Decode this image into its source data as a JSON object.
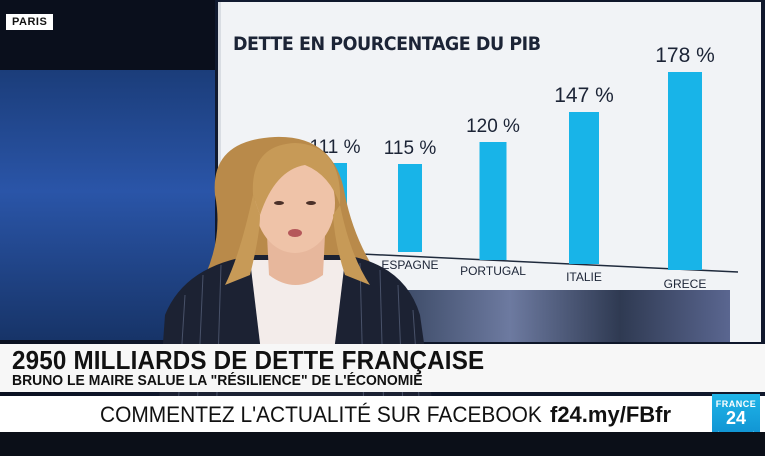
{
  "location_tag": "PARIS",
  "chart_data": {
    "type": "bar",
    "title": "DETTE EN POURCENTAGE DU PIB",
    "categories": [
      "",
      "ESPAGNE",
      "PORTUGAL",
      "ITALIE",
      "GRECE"
    ],
    "values": [
      111,
      115,
      120,
      147,
      178
    ],
    "value_labels": [
      "111 %",
      "115 %",
      "120 %",
      "147 %",
      "178 %"
    ],
    "bar_color": "#18b4e8",
    "ylim": [
      0,
      200
    ],
    "grid": false
  },
  "banner": {
    "headline": "2950 MILLIARDS DE DETTE FRANÇAISE",
    "subheadline": "BRUNO LE MAIRE SALUE LA \"RÉSILIENCE\" DE L'ÉCONOMIE"
  },
  "ticker": {
    "text": "COMMENTEZ L'ACTUALITÉ SUR FACEBOOK",
    "link": "f24.my/FBfr"
  },
  "logo": {
    "line1": "FRANCE",
    "line2": "24"
  },
  "colors": {
    "accent": "#18b4e8",
    "banner_bg": "#f7f7f7",
    "logo_bg": "#1fb5e8"
  }
}
